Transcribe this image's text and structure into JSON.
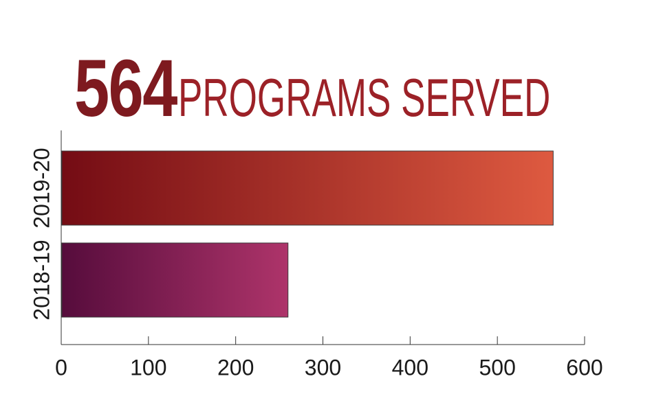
{
  "headline": {
    "number": "564",
    "text": "PROGRAMS SERVED"
  },
  "colors": {
    "headline_number": "#7e1a1f",
    "headline_text": "#9c2127",
    "bar_2019_start": "#740c14",
    "bar_2019_end": "#de5a40",
    "bar_2018_start": "#560c3c",
    "bar_2018_end": "#ae346a",
    "axis": "#333333"
  },
  "chart_data": {
    "type": "bar",
    "orientation": "horizontal",
    "categories": [
      "2019-20",
      "2018-19"
    ],
    "values": [
      564,
      260
    ],
    "xlim": [
      0,
      600
    ],
    "xticks": [
      0,
      100,
      200,
      300,
      400,
      500,
      600
    ],
    "title": "",
    "xlabel": "",
    "ylabel": "",
    "grid": false,
    "legend": "none"
  }
}
